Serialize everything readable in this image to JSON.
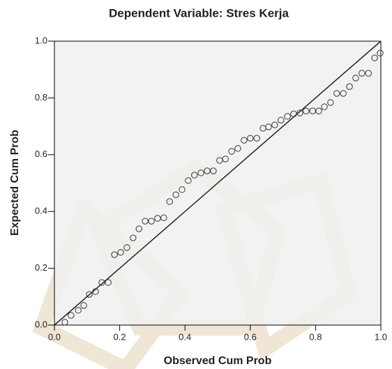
{
  "chart_data": {
    "type": "scatter",
    "title": "Dependent Variable: Stres Kerja",
    "x_label": "Observed Cum Prob",
    "y_label": "Expected Cum Prob",
    "xlim": [
      0,
      1
    ],
    "ylim": [
      0,
      1
    ],
    "xticks": [
      {
        "value": 0,
        "label": "0.0"
      },
      0.2,
      0.4,
      0.6,
      0.8,
      {
        "value": 1,
        "label": "1.0"
      }
    ],
    "yticks": [
      {
        "value": 0,
        "label": "0.0"
      },
      0.2,
      0.4,
      0.6,
      0.8,
      {
        "value": 1,
        "label": "1.0"
      }
    ],
    "color": "#333333",
    "x": [
      0.032,
      0.051,
      0.073,
      0.09,
      0.107,
      0.126,
      0.145,
      0.165,
      0.184,
      0.203,
      0.222,
      0.241,
      0.259,
      0.278,
      0.297,
      0.316,
      0.335,
      0.353,
      0.372,
      0.391,
      0.41,
      0.429,
      0.449,
      0.468,
      0.487,
      0.506,
      0.524,
      0.543,
      0.562,
      0.581,
      0.6,
      0.62,
      0.639,
      0.656,
      0.675,
      0.694,
      0.714,
      0.733,
      0.752,
      0.771,
      0.791,
      0.81,
      0.827,
      0.846,
      0.865,
      0.885,
      0.904,
      0.923,
      0.942,
      0.962,
      0.981,
      0.998
    ],
    "values": [
      0.01,
      0.034,
      0.052,
      0.069,
      0.108,
      0.118,
      0.15,
      0.15,
      0.248,
      0.256,
      0.273,
      0.307,
      0.339,
      0.366,
      0.366,
      0.376,
      0.378,
      0.435,
      0.459,
      0.477,
      0.509,
      0.528,
      0.536,
      0.543,
      0.543,
      0.58,
      0.585,
      0.612,
      0.622,
      0.651,
      0.658,
      0.658,
      0.693,
      0.698,
      0.705,
      0.722,
      0.735,
      0.744,
      0.747,
      0.754,
      0.754,
      0.754,
      0.769,
      0.784,
      0.816,
      0.816,
      0.84,
      0.87,
      0.887,
      0.887,
      0.941,
      0.958
    ]
  }
}
